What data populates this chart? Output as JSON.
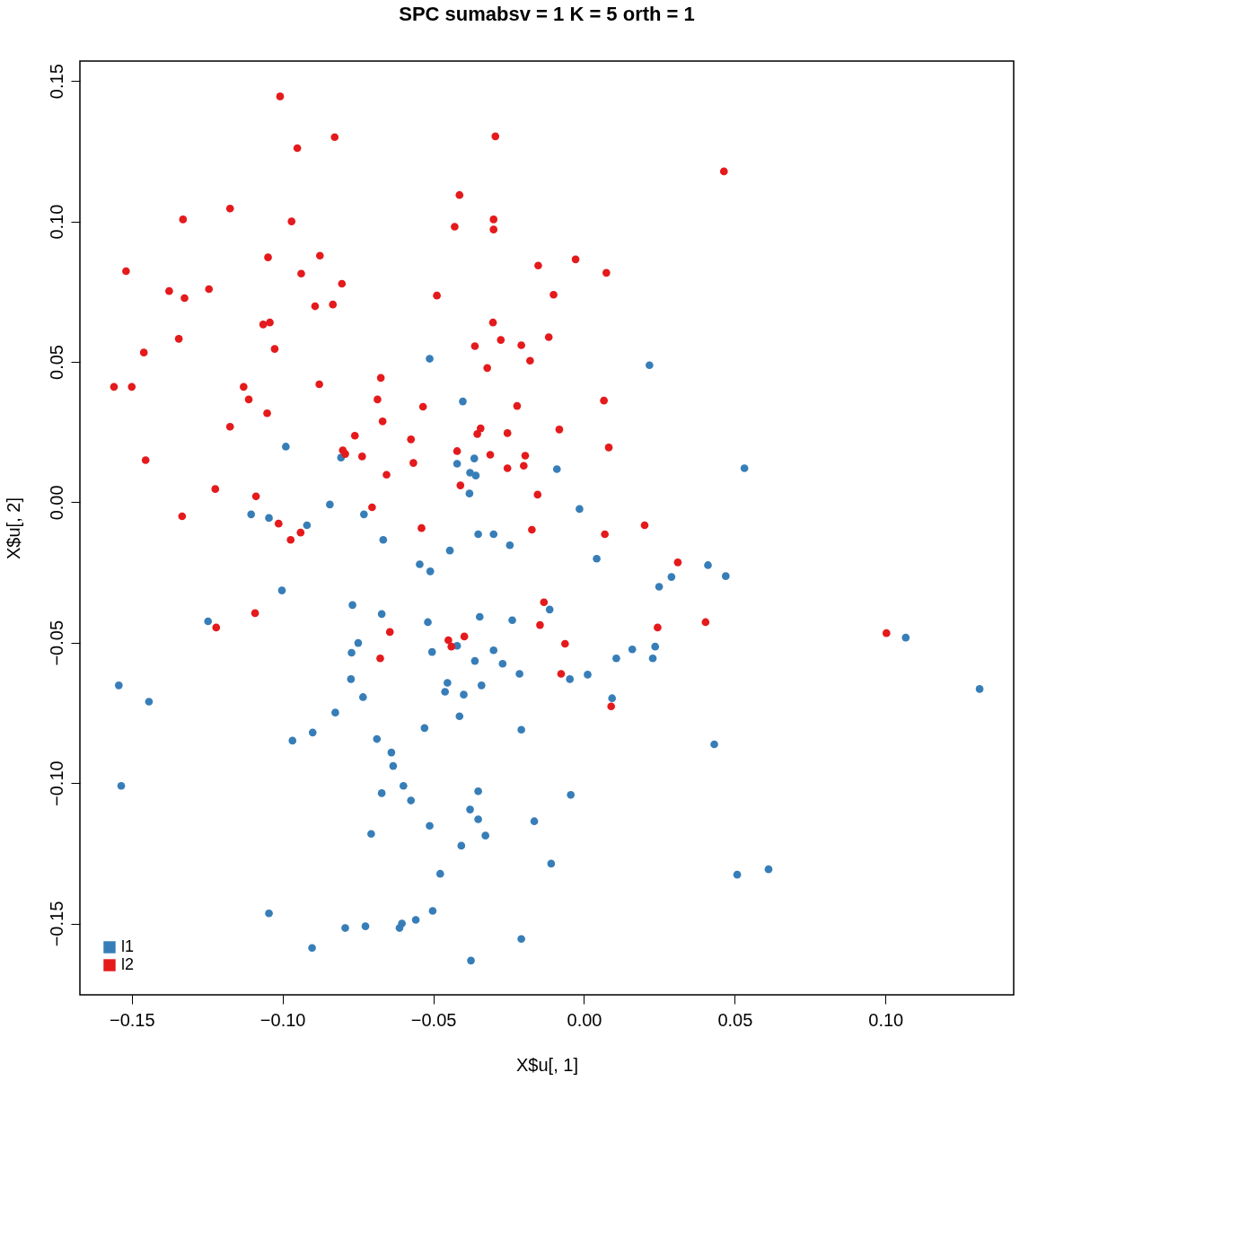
{
  "chart_data": {
    "type": "scatter",
    "title": "SPC sumabsv = 1 K = 5 orth =  1",
    "xlabel": "X$u[, 1]",
    "ylabel": "X$u[, 2]",
    "xlim": [
      -0.1672,
      0.1425
    ],
    "ylim": [
      -0.1754,
      0.1571
    ],
    "xticks": [
      {
        "value": -0.15,
        "label": "−0.15"
      },
      {
        "value": -0.1,
        "label": "−0.10"
      },
      {
        "value": -0.05,
        "label": "−0.05"
      },
      {
        "value": 0,
        "label": "0.00"
      },
      {
        "value": 0.05,
        "label": "0.05"
      },
      {
        "value": 0.1,
        "label": "0.10"
      }
    ],
    "yticks": [
      {
        "value": -0.15,
        "label": "−0.15"
      },
      {
        "value": -0.1,
        "label": "−0.10"
      },
      {
        "value": -0.05,
        "label": "−0.05"
      },
      {
        "value": 0,
        "label": "0.00"
      },
      {
        "value": 0.05,
        "label": "0.05"
      },
      {
        "value": 0.1,
        "label": "0.10"
      },
      {
        "value": 0.15,
        "label": "0.15"
      }
    ],
    "grid": false,
    "legend": "bottom left",
    "marker": "circle",
    "series": [
      {
        "name": "l1",
        "color": "#377eb8",
        "x": [
          -0.0512,
          0.0217,
          -0.0402,
          -0.0989,
          -0.0806,
          -0.0364,
          -0.0421,
          0.0532,
          -0.009,
          -0.0378,
          -0.0359,
          -0.038,
          -0.0843,
          -0.0015,
          -0.1104,
          -0.1045,
          -0.073,
          -0.0919,
          -0.0351,
          -0.03,
          -0.0666,
          -0.0246,
          -0.0445,
          0.0042,
          -0.0545,
          0.0411,
          -0.051,
          0.029,
          0.047,
          0.0249,
          -0.1002,
          -0.0768,
          -0.0114,
          -0.0671,
          -0.0346,
          -0.1247,
          -0.0238,
          -0.0518,
          0.1067,
          -0.0749,
          -0.0421,
          0.016,
          0.0236,
          -0.0771,
          -0.0504,
          -0.03,
          -0.0362,
          0.0228,
          0.0107,
          -0.027,
          -0.0214,
          0.0012,
          -0.0047,
          -0.0773,
          -0.0453,
          -0.034,
          -0.1543,
          0.1312,
          -0.0461,
          -0.0399,
          -0.0733,
          0.0093,
          -0.1443,
          -0.0825,
          -0.0413,
          -0.0529,
          -0.0208,
          -0.09,
          -0.0687,
          -0.0967,
          0.0432,
          -0.0639,
          -0.0633,
          -0.1535,
          -0.0599,
          -0.0351,
          -0.0044,
          -0.0671,
          -0.0574,
          -0.0378,
          -0.0351,
          -0.0165,
          -0.0512,
          -0.0706,
          -0.0327,
          -0.0407,
          -0.0109,
          0.0612,
          0.0508,
          -0.0477,
          -0.0502,
          -0.1045,
          -0.0558,
          -0.0604,
          -0.0725,
          -0.0792,
          -0.0612,
          -0.0208,
          -0.0902,
          -0.0375
        ],
        "values": [
          0.0511,
          0.0488,
          0.0359,
          0.0198,
          0.0159,
          0.0156,
          0.0137,
          0.0121,
          0.0118,
          0.0105,
          0.0095,
          0.0031,
          -0.0008,
          -0.0024,
          -0.0043,
          -0.0056,
          -0.0043,
          -0.0082,
          -0.0114,
          -0.0114,
          -0.0134,
          -0.0153,
          -0.0172,
          -0.0201,
          -0.0221,
          -0.0224,
          -0.0246,
          -0.0266,
          -0.0263,
          -0.0301,
          -0.0314,
          -0.0366,
          -0.0382,
          -0.0398,
          -0.0408,
          -0.0424,
          -0.042,
          -0.0427,
          -0.0482,
          -0.0501,
          -0.0511,
          -0.0524,
          -0.0514,
          -0.0536,
          -0.0533,
          -0.0527,
          -0.0565,
          -0.0556,
          -0.0556,
          -0.0575,
          -0.0611,
          -0.0614,
          -0.063,
          -0.063,
          -0.0643,
          -0.0652,
          -0.0652,
          -0.0665,
          -0.0675,
          -0.0685,
          -0.0694,
          -0.0698,
          -0.071,
          -0.0749,
          -0.0762,
          -0.0804,
          -0.081,
          -0.082,
          -0.0843,
          -0.0849,
          -0.0862,
          -0.0891,
          -0.0939,
          -0.101,
          -0.101,
          -0.1029,
          -0.1042,
          -0.1036,
          -0.1062,
          -0.1094,
          -0.1129,
          -0.1136,
          -0.1152,
          -0.1181,
          -0.1187,
          -0.1223,
          -0.1287,
          -0.1307,
          -0.1326,
          -0.1323,
          -0.1455,
          -0.1464,
          -0.1487,
          -0.15,
          -0.151,
          -0.1516,
          -0.1516,
          -0.1555,
          -0.1587,
          -0.1632
        ]
      },
      {
        "name": "l2",
        "color": "#e41a1c",
        "x": [
          -0.1008,
          -0.0827,
          -0.0951,
          -0.0294,
          0.0464,
          -0.0413,
          -0.1174,
          -0.133,
          -0.097,
          -0.03,
          -0.03,
          -0.0429,
          -0.1519,
          -0.1048,
          -0.0876,
          -0.0938,
          -0.0803,
          -0.0152,
          -0.0028,
          0.0074,
          -0.1376,
          -0.1325,
          -0.1244,
          -0.0892,
          -0.0833,
          -0.0488,
          -0.0101,
          -0.0302,
          -0.1064,
          -0.1042,
          -0.1344,
          -0.1026,
          -0.0362,
          -0.0276,
          -0.0208,
          -0.0117,
          -0.0179,
          -0.146,
          -0.0321,
          -0.1559,
          -0.15,
          -0.1129,
          -0.0878,
          -0.0674,
          -0.1112,
          -0.0685,
          -0.1051,
          -0.0534,
          -0.0222,
          0.0066,
          -0.0668,
          -0.1174,
          -0.0082,
          -0.0343,
          -0.0354,
          -0.076,
          -0.0254,
          -0.0574,
          0.0082,
          -0.08,
          -0.0792,
          -0.0421,
          -0.0311,
          -0.0195,
          -0.1454,
          -0.0736,
          -0.0566,
          -0.02,
          -0.0254,
          -0.0655,
          -0.041,
          -0.1223,
          -0.1088,
          -0.0154,
          -0.0703,
          -0.1333,
          -0.1013,
          0.0201,
          -0.0539,
          -0.0173,
          0.0069,
          -0.094,
          -0.0973,
          0.0311,
          -0.0133,
          -0.1091,
          0.0403,
          -0.122,
          0.0244,
          -0.0644,
          0.1003,
          -0.0146,
          -0.0397,
          -0.045,
          -0.044,
          -0.0063,
          -0.0676,
          -0.0076,
          0.009
        ],
        "values": [
          0.1445,
          0.13,
          0.1261,
          0.1303,
          0.1178,
          0.1094,
          0.1046,
          0.1007,
          0.1,
          0.1007,
          0.0971,
          0.0981,
          0.0823,
          0.0872,
          0.0878,
          0.0814,
          0.0778,
          0.0843,
          0.0865,
          0.0817,
          0.0752,
          0.0727,
          0.0759,
          0.0698,
          0.0704,
          0.0736,
          0.0739,
          0.064,
          0.0633,
          0.064,
          0.0582,
          0.0546,
          0.0556,
          0.0578,
          0.0559,
          0.0588,
          0.0504,
          0.0533,
          0.0478,
          0.0411,
          0.0411,
          0.0411,
          0.042,
          0.0443,
          0.0366,
          0.0366,
          0.0317,
          0.034,
          0.0343,
          0.0362,
          0.0288,
          0.0269,
          0.0259,
          0.0263,
          0.0243,
          0.0237,
          0.0246,
          0.0224,
          0.0195,
          0.0185,
          0.0172,
          0.0182,
          0.0169,
          0.0166,
          0.015,
          0.0163,
          0.014,
          0.013,
          0.0121,
          0.0098,
          0.006,
          0.0047,
          0.0021,
          0.0027,
          -0.0018,
          -0.005,
          -0.0076,
          -0.0082,
          -0.0092,
          -0.0098,
          -0.0114,
          -0.0108,
          -0.0134,
          -0.0214,
          -0.0356,
          -0.0395,
          -0.0427,
          -0.0446,
          -0.0446,
          -0.0462,
          -0.0466,
          -0.0437,
          -0.0478,
          -0.0491,
          -0.0514,
          -0.0504,
          -0.0556,
          -0.0611,
          -0.0727
        ]
      }
    ]
  }
}
